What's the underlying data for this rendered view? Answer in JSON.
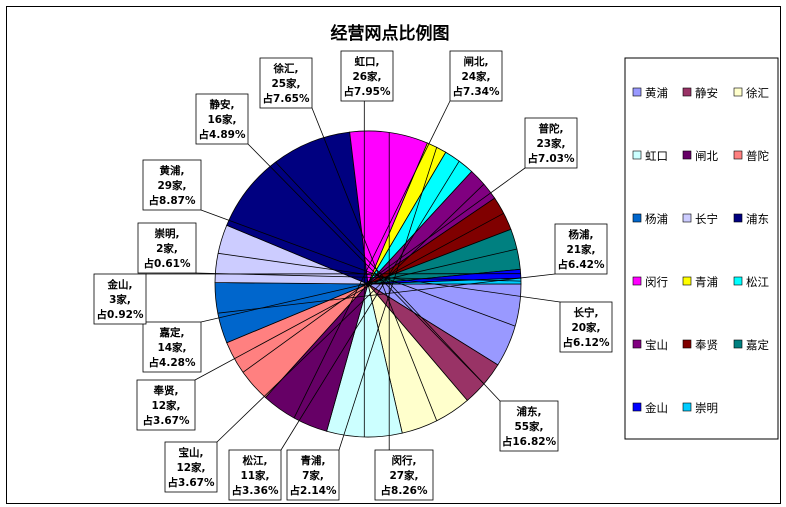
{
  "chart_data": {
    "type": "pie",
    "title": "经营网点比例图",
    "count_unit": "家",
    "percent_prefix": "占",
    "slices": [
      {
        "name": "黄浦",
        "value": 29,
        "pct": "8.87%",
        "color": "#9999ff"
      },
      {
        "name": "静安",
        "value": 16,
        "pct": "4.89%",
        "color": "#993366"
      },
      {
        "name": "徐汇",
        "value": 25,
        "pct": "7.65%",
        "color": "#ffffcc"
      },
      {
        "name": "虹口",
        "value": 26,
        "pct": "7.95%",
        "color": "#ccffff"
      },
      {
        "name": "闸北",
        "value": 24,
        "pct": "7.34%",
        "color": "#660066"
      },
      {
        "name": "普陀",
        "value": 23,
        "pct": "7.03%",
        "color": "#ff8080"
      },
      {
        "name": "杨浦",
        "value": 21,
        "pct": "6.42%",
        "color": "#0066cc"
      },
      {
        "name": "长宁",
        "value": 20,
        "pct": "6.12%",
        "color": "#ccccff"
      },
      {
        "name": "浦东",
        "value": 55,
        "pct": "16.82%",
        "color": "#000080"
      },
      {
        "name": "闵行",
        "value": 27,
        "pct": "8.26%",
        "color": "#ff00ff"
      },
      {
        "name": "青浦",
        "value": 7,
        "pct": "2.14%",
        "color": "#ffff00"
      },
      {
        "name": "松江",
        "value": 11,
        "pct": "3.36%",
        "color": "#00ffff"
      },
      {
        "name": "宝山",
        "value": 12,
        "pct": "3.67%",
        "color": "#800080"
      },
      {
        "name": "奉贤",
        "value": 12,
        "pct": "3.67%",
        "color": "#800000"
      },
      {
        "name": "嘉定",
        "value": 14,
        "pct": "4.28%",
        "color": "#008080"
      },
      {
        "name": "金山",
        "value": 3,
        "pct": "0.92%",
        "color": "#0000ff"
      },
      {
        "name": "崇明",
        "value": 2,
        "pct": "0.61%",
        "color": "#00ccff"
      }
    ],
    "start_angle_deg": 0,
    "direction": "clockwise",
    "legend_placement": "right"
  }
}
